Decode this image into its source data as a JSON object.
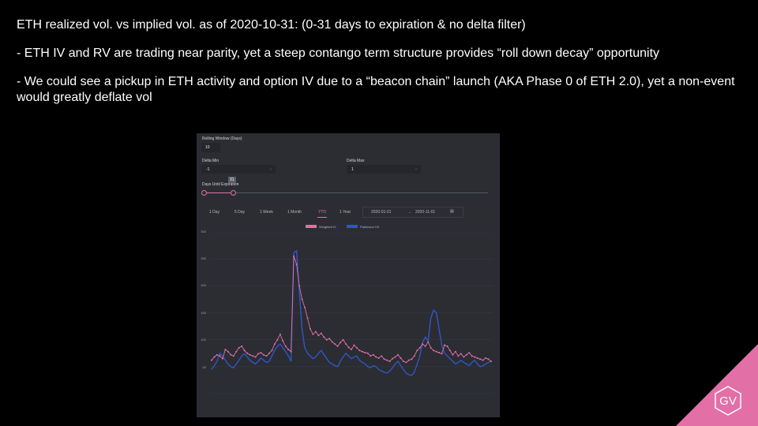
{
  "slide": {
    "title": "ETH realized vol. vs implied vol. as of 2020-10-31: (0-31 days to expiration & no delta filter)",
    "bullets": [
      "- ETH IV and RV are trading near parity, yet a steep contango term structure provides “roll down decay” opportunity",
      "- We could see a pickup in ETH activity and option IV due to a “beacon chain” launch (AKA Phase 0 of ETH 2.0), yet a non-event would greatly deflate vol"
    ],
    "logo_text": "GV"
  },
  "panel": {
    "rolling_window_label": "Rolling Window (Days)",
    "rolling_window_value": "10",
    "delta_min_label": "Delta Min",
    "delta_min_value": "-1",
    "delta_max_label": "Delta Max",
    "delta_max_value": "1",
    "days_label": "Days Until Expiration",
    "days_value": "31",
    "ranges": [
      "1 Day",
      "5 Day",
      "1 Week",
      "1 Month",
      "YTD",
      "1 Year"
    ],
    "active_range": "YTD",
    "date_from": "2020-01-01",
    "date_sep": "→",
    "date_to": "2020-11-01",
    "calendar_icon": "calendar-icon",
    "chevron_icon": "chevron-down-icon"
  },
  "chart_data": {
    "type": "line",
    "x_start": "2020-01-01",
    "x_end": "2020-11-01",
    "ylim": [
      0,
      300
    ],
    "yticks": [
      "300",
      "250",
      "200",
      "150",
      "100",
      "50"
    ],
    "ylabel": "",
    "xlabel": "",
    "colors": {
      "weighted": "#e36fa7",
      "parkinson": "#2f56c8"
    },
    "series": [
      {
        "name": "Weighted IV",
        "values": [
          62,
          68,
          72,
          70,
          65,
          82,
          78,
          72,
          70,
          78,
          85,
          88,
          80,
          75,
          72,
          70,
          68,
          74,
          76,
          72,
          70,
          75,
          80,
          92,
          100,
          110,
          98,
          88,
          82,
          78,
          255,
          240,
          200,
          175,
          160,
          140,
          120,
          110,
          115,
          108,
          112,
          105,
          100,
          102,
          96,
          92,
          88,
          95,
          100,
          92,
          86,
          82,
          90,
          85,
          80,
          78,
          76,
          75,
          70,
          72,
          68,
          66,
          70,
          64,
          62,
          60,
          65,
          68,
          72,
          66,
          60,
          58,
          62,
          64,
          70,
          80,
          85,
          92,
          88,
          96,
          85,
          80,
          78,
          76,
          74,
          90,
          88,
          80,
          72,
          78,
          70,
          74,
          68,
          72,
          76,
          70,
          68,
          66,
          64,
          62,
          66,
          64,
          60
        ]
      },
      {
        "name": "Parkinson HV",
        "values": [
          45,
          52,
          60,
          75,
          70,
          62,
          55,
          50,
          48,
          55,
          62,
          70,
          74,
          68,
          62,
          58,
          55,
          60,
          66,
          62,
          58,
          60,
          70,
          80,
          88,
          92,
          85,
          78,
          70,
          60,
          262,
          265,
          190,
          120,
          85,
          75,
          70,
          65,
          68,
          75,
          80,
          72,
          65,
          58,
          55,
          52,
          50,
          60,
          68,
          75,
          70,
          65,
          68,
          70,
          62,
          58,
          55,
          50,
          48,
          52,
          50,
          45,
          42,
          40,
          38,
          42,
          48,
          55,
          60,
          52,
          45,
          38,
          35,
          34,
          40,
          55,
          70,
          95,
          105,
          98,
          140,
          155,
          150,
          120,
          90,
          75,
          70,
          65,
          60,
          55,
          58,
          62,
          58,
          55,
          52,
          58,
          62,
          55,
          50,
          52,
          55,
          58,
          60
        ]
      }
    ]
  }
}
